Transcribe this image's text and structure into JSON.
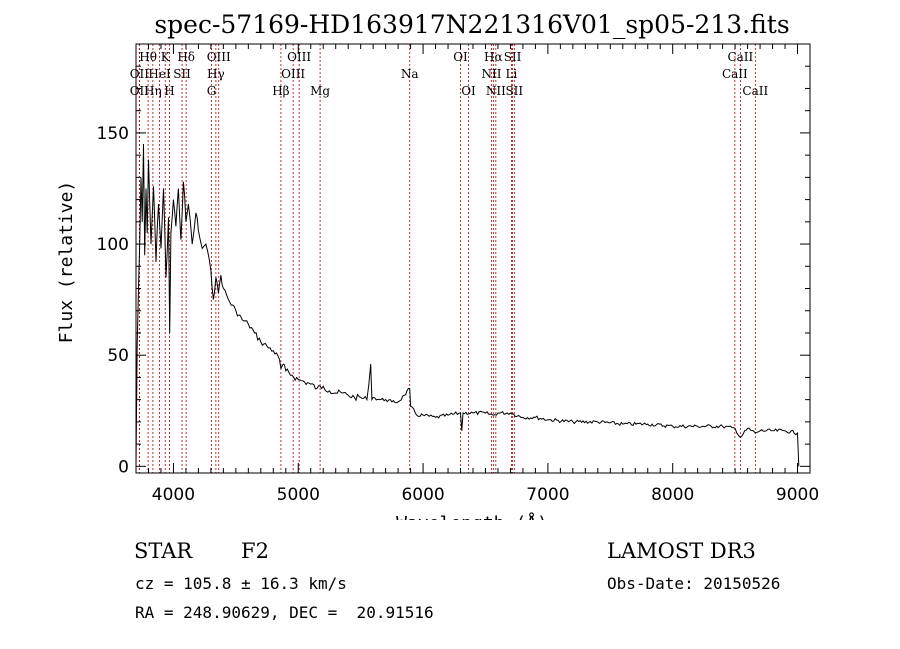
{
  "chart_data": {
    "type": "line",
    "title": "spec-57169-HD163917N221316V01_sp05-213.fits",
    "xlabel": "Wavelength (Å)",
    "ylabel": "Flux (relative)",
    "xlim": [
      3700,
      9100
    ],
    "ylim": [
      -3,
      190
    ],
    "xticks": [
      4000,
      5000,
      6000,
      7000,
      8000,
      9000
    ],
    "yticks": [
      0,
      50,
      100,
      150
    ],
    "spectrum": {
      "name": "flux",
      "x": [
        3700,
        3710,
        3720,
        3730,
        3740,
        3750,
        3760,
        3770,
        3780,
        3790,
        3800,
        3820,
        3840,
        3860,
        3880,
        3900,
        3920,
        3940,
        3960,
        3970,
        3980,
        4000,
        4020,
        4040,
        4060,
        4080,
        4100,
        4120,
        4150,
        4180,
        4200,
        4230,
        4260,
        4300,
        4320,
        4340,
        4360,
        4380,
        4400,
        4450,
        4500,
        4550,
        4600,
        4650,
        4700,
        4750,
        4800,
        4850,
        4861,
        4880,
        4900,
        4950,
        5000,
        5050,
        5100,
        5150,
        5200,
        5250,
        5300,
        5350,
        5400,
        5450,
        5500,
        5550,
        5580,
        5590,
        5600,
        5650,
        5700,
        5750,
        5800,
        5850,
        5893,
        5900,
        5950,
        6000,
        6100,
        6200,
        6300,
        6310,
        6320,
        6400,
        6500,
        6563,
        6600,
        6700,
        6800,
        6900,
        7000,
        7200,
        7400,
        7600,
        7800,
        8000,
        8200,
        8400,
        8500,
        8542,
        8600,
        8662,
        8700,
        8800,
        8900,
        9000,
        9010
      ],
      "y": [
        0,
        55,
        80,
        100,
        130,
        110,
        145,
        95,
        125,
        105,
        138,
        100,
        126,
        92,
        118,
        98,
        125,
        85,
        112,
        60,
        105,
        120,
        108,
        125,
        102,
        128,
        110,
        118,
        100,
        114,
        106,
        98,
        100,
        88,
        75,
        85,
        78,
        86,
        80,
        74,
        70,
        66,
        64,
        60,
        56,
        54,
        52,
        48,
        44,
        46,
        43,
        41,
        39,
        38,
        37,
        35,
        36,
        34,
        33,
        33,
        32,
        31,
        31,
        30,
        46,
        30,
        31,
        30,
        30,
        29,
        29,
        32,
        35,
        27,
        23,
        23,
        22,
        23,
        24,
        16,
        24,
        24,
        24,
        23,
        24,
        24,
        22,
        22,
        21,
        20,
        20,
        19,
        19,
        18,
        18,
        18,
        17,
        13,
        17,
        15,
        16,
        16,
        16,
        15,
        0
      ]
    },
    "lines": [
      {
        "label": "OII",
        "wl": 3727,
        "row": 1
      },
      {
        "label": "OII",
        "wl": 3727,
        "row": 2
      },
      {
        "label": "Hθ",
        "wl": 3797,
        "row": 0
      },
      {
        "label": "Hη",
        "wl": 3835,
        "row": 2
      },
      {
        "label": "HeI",
        "wl": 3889,
        "row": 1
      },
      {
        "label": "K",
        "wl": 3934,
        "row": 0
      },
      {
        "label": "H",
        "wl": 3968,
        "row": 2
      },
      {
        "label": "SII",
        "wl": 4069,
        "row": 1
      },
      {
        "label": "Hδ",
        "wl": 4102,
        "row": 0
      },
      {
        "label": "G",
        "wl": 4305,
        "row": 2
      },
      {
        "label": "Hγ",
        "wl": 4340,
        "row": 1
      },
      {
        "label": "OIII",
        "wl": 4363,
        "row": 0
      },
      {
        "label": "Hβ",
        "wl": 4861,
        "row": 2
      },
      {
        "label": "OIII",
        "wl": 4959,
        "row": 1
      },
      {
        "label": "OIII",
        "wl": 5007,
        "row": 0
      },
      {
        "label": "Mg",
        "wl": 5175,
        "row": 2
      },
      {
        "label": "Na",
        "wl": 5893,
        "row": 1
      },
      {
        "label": "OI",
        "wl": 6300,
        "row": 0
      },
      {
        "label": "OI",
        "wl": 6364,
        "row": 2
      },
      {
        "label": "NII",
        "wl": 6548,
        "row": 1
      },
      {
        "label": "Hα",
        "wl": 6563,
        "row": 0
      },
      {
        "label": "NII",
        "wl": 6583,
        "row": 2
      },
      {
        "label": "Li",
        "wl": 6708,
        "row": 1
      },
      {
        "label": "SII",
        "wl": 6717,
        "row": 0
      },
      {
        "label": "SII",
        "wl": 6731,
        "row": 2
      },
      {
        "label": "CaII",
        "wl": 8498,
        "row": 1
      },
      {
        "label": "CaII",
        "wl": 8542,
        "row": 0
      },
      {
        "label": "CaII",
        "wl": 8662,
        "row": 2
      }
    ]
  },
  "footer": {
    "object_class": "STAR",
    "subclass": "F2",
    "survey": "LAMOST DR3",
    "redshift": "cz = 105.8 ± 16.3 km/s",
    "obs_date": "Obs-Date: 20150526",
    "coords": "RA = 248.90629, DEC =  20.91516"
  }
}
